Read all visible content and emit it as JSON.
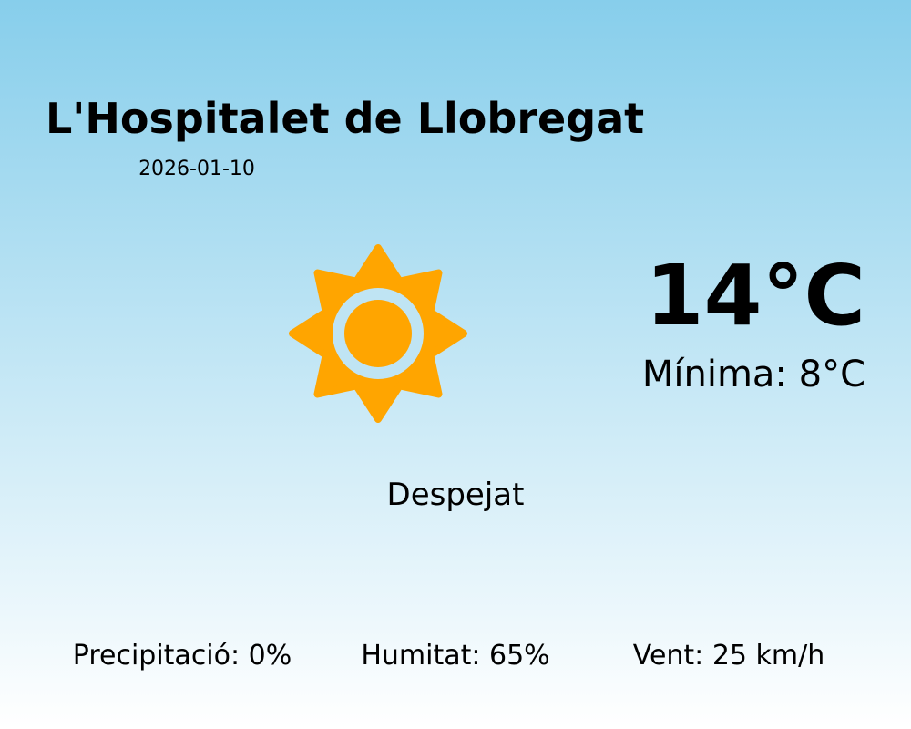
{
  "location": "L'Hospitalet de Llobregat",
  "date": "2026-01-10",
  "weather_icon": "sun-icon",
  "temperature": "14°C",
  "minimum": "Mínima: 8°C",
  "condition": "Despejat",
  "stats": {
    "precipitation": "Precipitació: 0%",
    "humidity": "Humitat: 65%",
    "wind": "Vent: 25 km/h"
  },
  "colors": {
    "sun": "#FFA500",
    "sky_top": "#87CEEB",
    "sky_bottom": "#FFFFFF"
  }
}
